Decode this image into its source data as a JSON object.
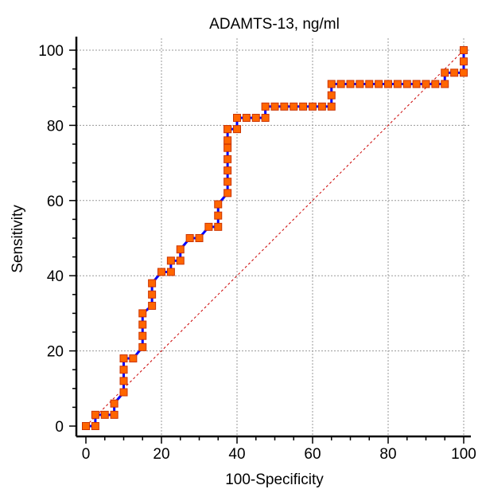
{
  "chart_data": {
    "type": "line",
    "title": "ADAMTS-13, ng/ml",
    "xlabel": "100-Specificity",
    "ylabel": "Sensitivity",
    "xlim": [
      0,
      100
    ],
    "ylim": [
      0,
      100
    ],
    "xticks": [
      0,
      20,
      40,
      60,
      80,
      100
    ],
    "yticks": [
      0,
      20,
      40,
      60,
      80,
      100
    ],
    "grid": true,
    "colors": {
      "curve": "#0000ff",
      "marker_fill": "#ff6600",
      "marker_edge": "#cc3300",
      "diagonal": "#cc0000",
      "grid": "#9a9a9a"
    },
    "series": [
      {
        "x": [
          0,
          2.5,
          2.5,
          5,
          7.5,
          7.5,
          10,
          10,
          10,
          10,
          12.5,
          15,
          15,
          15,
          15,
          17.5,
          17.5,
          17.5,
          20,
          22.5,
          22.5,
          25,
          25,
          27.5,
          30,
          32.5,
          35,
          35,
          35,
          37.5,
          37.5,
          37.5,
          37.5,
          37.5,
          37.5,
          37.5,
          37.5,
          40,
          40,
          42.5,
          45,
          47.5,
          47.5,
          50,
          52.5,
          55,
          57.5,
          60,
          62.5,
          65,
          65,
          65,
          67.5,
          70,
          72.5,
          75,
          77.5,
          80,
          82.5,
          85,
          87.5,
          90,
          92.5,
          95,
          95,
          97.5,
          100,
          100,
          100
        ],
        "y": [
          0,
          0,
          3,
          3,
          3,
          6,
          9,
          12,
          15,
          18,
          18,
          21,
          24,
          27,
          30,
          32,
          35,
          38,
          41,
          41,
          44,
          44,
          47,
          50,
          50,
          53,
          53,
          56,
          59,
          62,
          65,
          68,
          71,
          74,
          76,
          79,
          79,
          79,
          82,
          82,
          82,
          82,
          85,
          85,
          85,
          85,
          85,
          85,
          85,
          85,
          88,
          91,
          91,
          91,
          91,
          91,
          91,
          91,
          91,
          91,
          91,
          91,
          91,
          91,
          94,
          94,
          94,
          97,
          100
        ]
      }
    ],
    "reference_line": {
      "x": [
        0,
        100
      ],
      "y": [
        0,
        100
      ]
    }
  }
}
